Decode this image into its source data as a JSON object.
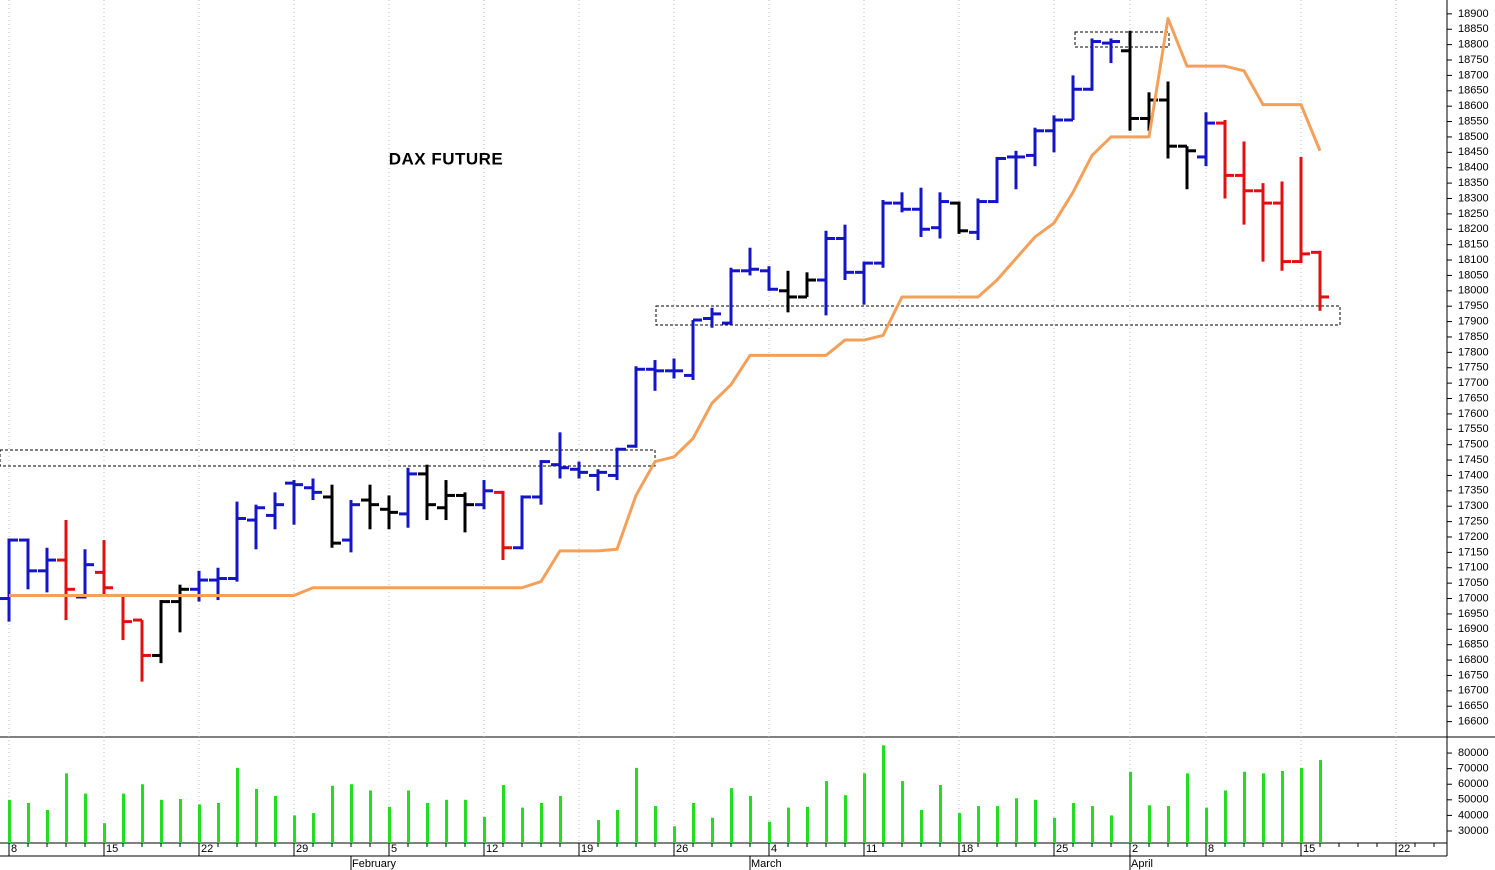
{
  "chart_data": [
    {
      "type": "ohlc",
      "title": "DAX FUTURE",
      "categories": [
        "8",
        null,
        null,
        null,
        null,
        "15",
        null,
        null,
        null,
        null,
        "22",
        null,
        null,
        null,
        null,
        "29",
        null,
        null,
        null,
        null,
        "5",
        null,
        null,
        null,
        null,
        "12",
        null,
        null,
        null,
        null,
        "19",
        null,
        null,
        null,
        null,
        "26",
        null,
        null,
        null,
        null,
        "4",
        null,
        null,
        null,
        null,
        "11",
        null,
        null,
        null,
        null,
        "18",
        null,
        null,
        null,
        null,
        "25",
        null,
        null,
        null,
        "2",
        null,
        null,
        null,
        "8",
        null,
        null,
        null,
        null,
        "15",
        null,
        null,
        null,
        null,
        "22",
        null,
        null
      ],
      "months": [
        null,
        null,
        null,
        null,
        null,
        null,
        null,
        null,
        null,
        null,
        null,
        null,
        null,
        null,
        null,
        null,
        null,
        null,
        "February",
        null,
        null,
        null,
        null,
        null,
        null,
        null,
        null,
        null,
        null,
        null,
        null,
        null,
        null,
        null,
        null,
        null,
        null,
        null,
        null,
        "March",
        null,
        null,
        null,
        null,
        null,
        null,
        null,
        null,
        null,
        null,
        null,
        null,
        null,
        null,
        null,
        null,
        null,
        null,
        null,
        "April",
        null,
        null,
        null,
        null,
        null,
        null,
        null,
        null,
        null,
        null,
        null,
        null,
        null,
        null,
        null,
        null
      ],
      "open": [
        17000,
        17190,
        17090,
        17125,
        17005,
        17085,
        17010,
        16930,
        16815,
        16990,
        17030,
        17060,
        17065,
        17255,
        17270,
        17375,
        17360,
        17330,
        17190,
        17320,
        17290,
        17275,
        17405,
        17295,
        17335,
        17305,
        17345,
        17165,
        17330,
        17435,
        17420,
        17400,
        17400,
        17495,
        17745,
        17740,
        17725,
        17910,
        17895,
        18065,
        18065,
        18000,
        17980,
        18035,
        18170,
        18060,
        18090,
        18285,
        18265,
        18205,
        18285,
        18190,
        18290,
        18435,
        18440,
        18520,
        18555,
        18655,
        18805,
        18780,
        18560,
        18620,
        18470,
        18435,
        18545,
        18375,
        18325,
        18285,
        18095,
        18125,
        null,
        null,
        null,
        null,
        null,
        null
      ],
      "high": [
        17195,
        17195,
        17165,
        17255,
        17160,
        17190,
        17010,
        16930,
        16995,
        17045,
        17090,
        17100,
        17315,
        17305,
        17345,
        17385,
        17390,
        17370,
        17320,
        17370,
        17335,
        17425,
        17435,
        17385,
        17345,
        17385,
        17350,
        17335,
        17450,
        17540,
        17445,
        17420,
        17490,
        17755,
        17775,
        17780,
        17905,
        17945,
        18075,
        18140,
        18080,
        18065,
        18060,
        18195,
        18215,
        18095,
        18295,
        18320,
        18335,
        18320,
        18290,
        18300,
        18435,
        18455,
        18530,
        18570,
        18700,
        18820,
        18820,
        18845,
        18645,
        18680,
        18470,
        18580,
        18555,
        18485,
        18350,
        18355,
        18435,
        18130,
        null,
        null,
        null,
        null,
        null,
        null
      ],
      "low": [
        16925,
        17030,
        17020,
        16930,
        17000,
        17005,
        16865,
        16730,
        16790,
        16890,
        16990,
        16995,
        17055,
        17160,
        17225,
        17240,
        17320,
        17165,
        17150,
        17225,
        17225,
        17230,
        17255,
        17255,
        17215,
        17290,
        17125,
        17160,
        17305,
        17390,
        17390,
        17350,
        17385,
        17490,
        17675,
        17715,
        17710,
        17880,
        17890,
        18050,
        18000,
        17930,
        17980,
        17920,
        18035,
        17955,
        18075,
        18255,
        18175,
        18170,
        18185,
        18165,
        18285,
        18330,
        18405,
        18450,
        18555,
        18650,
        18740,
        18520,
        18520,
        18430,
        18330,
        18405,
        18300,
        18215,
        18095,
        18065,
        18090,
        17935,
        null,
        null,
        null,
        null,
        null,
        null
      ],
      "close": [
        17190,
        17090,
        17125,
        17030,
        17110,
        17035,
        16925,
        16815,
        16990,
        17030,
        17060,
        17065,
        17260,
        17295,
        17305,
        17370,
        17345,
        17180,
        17305,
        17305,
        17280,
        17405,
        17305,
        17335,
        17305,
        17350,
        17165,
        17330,
        17445,
        17425,
        17410,
        17410,
        17485,
        17745,
        17740,
        17740,
        17905,
        17925,
        18065,
        18070,
        18005,
        17980,
        18035,
        18170,
        18060,
        18090,
        18285,
        18265,
        18200,
        18290,
        18195,
        18290,
        18430,
        18435,
        18520,
        18555,
        18655,
        18810,
        18810,
        18560,
        18620,
        18470,
        18455,
        18545,
        18375,
        18325,
        18285,
        18095,
        18120,
        17980,
        null,
        null,
        null,
        null,
        null,
        null
      ],
      "colors": [
        "#1515c8",
        "#1515c8",
        "#1515c8",
        "#e01010",
        "#1515c8",
        "#e01010",
        "#e01010",
        "#e01010",
        "#000000",
        "#000000",
        "#1515c8",
        "#1515c8",
        "#1515c8",
        "#1515c8",
        "#1515c8",
        "#1515c8",
        "#1515c8",
        "#000000",
        "#1515c8",
        "#000000",
        "#000000",
        "#1515c8",
        "#000000",
        "#000000",
        "#000000",
        "#1515c8",
        "#e01010",
        "#1515c8",
        "#1515c8",
        "#1515c8",
        "#1515c8",
        "#1515c8",
        "#1515c8",
        "#1515c8",
        "#1515c8",
        "#1515c8",
        "#1515c8",
        "#1515c8",
        "#1515c8",
        "#1515c8",
        "#1515c8",
        "#000000",
        "#000000",
        "#1515c8",
        "#1515c8",
        "#1515c8",
        "#1515c8",
        "#1515c8",
        "#1515c8",
        "#1515c8",
        "#000000",
        "#1515c8",
        "#1515c8",
        "#1515c8",
        "#1515c8",
        "#1515c8",
        "#1515c8",
        "#1515c8",
        "#1515c8",
        "#000000",
        "#000000",
        "#000000",
        "#000000",
        "#1515c8",
        "#e01010",
        "#e01010",
        "#e01010",
        "#e01010",
        "#e01010",
        "#e01010",
        null,
        null,
        null,
        null,
        null,
        null
      ],
      "line": {
        "color": "#f5a05a",
        "values": [
          17010,
          17010,
          17010,
          17010,
          17010,
          17010,
          17010,
          17010,
          17010,
          17010,
          17010,
          17010,
          17010,
          17010,
          17010,
          17010,
          17035,
          17035,
          17035,
          17035,
          17035,
          17035,
          17035,
          17035,
          17035,
          17035,
          17035,
          17035,
          17055,
          17155,
          17155,
          17155,
          17160,
          17335,
          17445,
          17460,
          17520,
          17635,
          17695,
          17790,
          17790,
          17790,
          17790,
          17790,
          17840,
          17840,
          17855,
          17980,
          17980,
          17980,
          17980,
          17980,
          18035,
          18105,
          18175,
          18220,
          18320,
          18440,
          18500,
          18500,
          18500,
          18885,
          18730,
          18730,
          18730,
          18715,
          18605,
          18605,
          18605,
          18455,
          null,
          null,
          null,
          null,
          null,
          null
        ]
      },
      "ylim": [
        16550,
        18945
      ],
      "yticks": [
        16600,
        16650,
        16700,
        16750,
        16800,
        16850,
        16900,
        16950,
        17000,
        17050,
        17100,
        17150,
        17200,
        17250,
        17300,
        17350,
        17400,
        17450,
        17500,
        17550,
        17600,
        17650,
        17700,
        17750,
        17800,
        17850,
        17900,
        17950,
        18000,
        18050,
        18100,
        18150,
        18200,
        18250,
        18300,
        18350,
        18400,
        18450,
        18500,
        18550,
        18600,
        18650,
        18700,
        18750,
        18800,
        18850,
        18900
      ]
    },
    {
      "type": "bar",
      "color": "#22dd22",
      "values": [
        50000,
        48000,
        43500,
        67000,
        54000,
        35000,
        54000,
        60000,
        50000,
        50500,
        47000,
        48000,
        70500,
        57000,
        52500,
        40000,
        41500,
        59000,
        60000,
        56000,
        45500,
        56000,
        48000,
        50000,
        50000,
        39000,
        59500,
        45000,
        48000,
        52500,
        null,
        37000,
        43500,
        70500,
        46000,
        33000,
        48000,
        38500,
        57500,
        52500,
        36000,
        45000,
        45500,
        62000,
        53000,
        67000,
        85000,
        62000,
        43500,
        59500,
        41500,
        46000,
        46000,
        51000,
        50000,
        38500,
        48000,
        46000,
        40000,
        68000,
        46500,
        46000,
        67000,
        45000,
        56000,
        68000,
        67000,
        68500,
        70500,
        75500,
        null,
        null,
        null,
        null,
        null,
        null
      ],
      "ylim": [
        22300,
        90300
      ],
      "yticks": [
        30000,
        40000,
        50000,
        60000,
        70000,
        80000
      ]
    }
  ]
}
